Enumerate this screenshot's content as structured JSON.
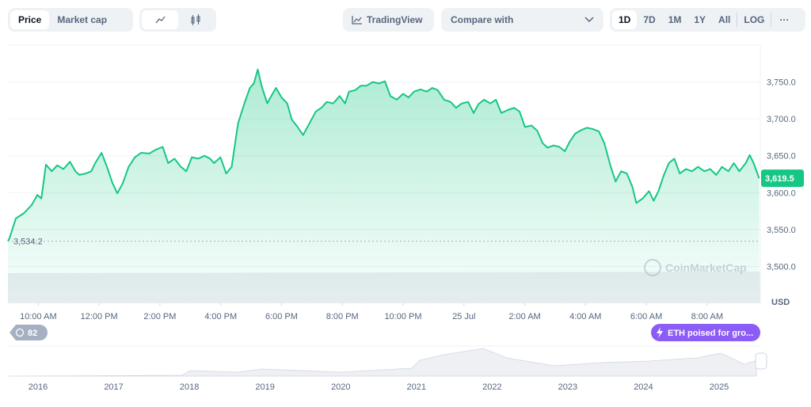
{
  "toolbar": {
    "tabs": [
      "Price",
      "Market cap"
    ],
    "tradingview": "TradingView",
    "compare": "Compare with",
    "ranges": [
      "1D",
      "7D",
      "1M",
      "1Y",
      "All",
      "LOG"
    ],
    "more": "···"
  },
  "chart_data": {
    "type": "line",
    "color": "#16c784",
    "grid": true,
    "unit": "USD",
    "watermark": "CoinMarketCap",
    "x": [
      9.0,
      9.05,
      9.26,
      9.52,
      9.78,
      9.97,
      10.1,
      10.25,
      10.44,
      10.62,
      10.83,
      11.04,
      11.22,
      11.35,
      11.56,
      11.74,
      11.87,
      12.08,
      12.26,
      12.44,
      12.6,
      12.78,
      12.97,
      13.18,
      13.38,
      13.65,
      13.85,
      14.09,
      14.27,
      14.48,
      14.69,
      14.87,
      15.05,
      15.26,
      15.47,
      15.65,
      15.78,
      15.99,
      16.18,
      16.36,
      16.57,
      16.78,
      16.96,
      17.09,
      17.22,
      17.35,
      17.53,
      17.69,
      17.82,
      18.0,
      18.19,
      18.34,
      18.53,
      18.71,
      18.92,
      19.13,
      19.31,
      19.49,
      19.7,
      19.91,
      20.09,
      20.22,
      20.43,
      20.61,
      20.8,
      21.0,
      21.21,
      21.4,
      21.58,
      21.79,
      22.0,
      22.18,
      22.36,
      22.57,
      22.78,
      22.96,
      23.14,
      23.35,
      23.56,
      23.74,
      23.93,
      24.14,
      24.32,
      24.48,
      24.66,
      24.87,
      25.05,
      25.23,
      25.44,
      25.65,
      25.83,
      26.01,
      26.22,
      26.41,
      26.59,
      26.75,
      26.95,
      27.14,
      27.32,
      27.48,
      27.66,
      27.87,
      28.05,
      28.26,
      28.44,
      28.62,
      28.83,
      28.99,
      29.17,
      29.36,
      29.54,
      29.67,
      29.88,
      30.09,
      30.24,
      30.4,
      30.58,
      30.74,
      30.92,
      31.1,
      31.31,
      31.5,
      31.7,
      31.91,
      32.1,
      32.3,
      32.49,
      32.7,
      32.88,
      33.06,
      33.27,
      33.4,
      33.53,
      33.71
    ],
    "values": [
      3534.2,
      3538,
      3565,
      3572,
      3583,
      3597,
      3592,
      3638,
      3629,
      3637,
      3632,
      3642,
      3629,
      3624,
      3626,
      3629,
      3640,
      3654,
      3635,
      3613,
      3599,
      3613,
      3635,
      3648,
      3654,
      3653,
      3658,
      3662,
      3640,
      3646,
      3635,
      3629,
      3648,
      3646,
      3650,
      3646,
      3640,
      3648,
      3626,
      3635,
      3694,
      3721,
      3742,
      3748,
      3767,
      3744,
      3721,
      3733,
      3742,
      3729,
      3721,
      3699,
      3689,
      3678,
      3694,
      3710,
      3715,
      3723,
      3721,
      3731,
      3721,
      3737,
      3739,
      3745,
      3745,
      3750,
      3748,
      3751,
      3731,
      3726,
      3734,
      3729,
      3737,
      3740,
      3737,
      3742,
      3739,
      3726,
      3723,
      3715,
      3721,
      3723,
      3708,
      3720,
      3726,
      3721,
      3726,
      3708,
      3712,
      3715,
      3710,
      3689,
      3691,
      3684,
      3667,
      3661,
      3664,
      3662,
      3656,
      3669,
      3680,
      3685,
      3688,
      3686,
      3683,
      3667,
      3635,
      3615,
      3629,
      3626,
      3608,
      3586,
      3592,
      3602,
      3589,
      3602,
      3624,
      3640,
      3646,
      3626,
      3632,
      3629,
      3635,
      3629,
      3632,
      3624,
      3635,
      3629,
      3640,
      3629,
      3640,
      3651,
      3640,
      3619.5
    ],
    "xlim": [
      9,
      33.75
    ],
    "xticks": [
      {
        "value": 10,
        "label": "10:00 AM"
      },
      {
        "value": 12,
        "label": "12:00 PM"
      },
      {
        "value": 14,
        "label": "2:00 PM"
      },
      {
        "value": 16,
        "label": "4:00 PM"
      },
      {
        "value": 18,
        "label": "6:00 PM"
      },
      {
        "value": 20,
        "label": "8:00 PM"
      },
      {
        "value": 22,
        "label": "10:00 PM"
      },
      {
        "value": 24,
        "label": "25 Jul"
      },
      {
        "value": 26,
        "label": "2:00 AM"
      },
      {
        "value": 28,
        "label": "4:00 AM"
      },
      {
        "value": 30,
        "label": "6:00 AM"
      },
      {
        "value": 32,
        "label": "8:00 AM"
      }
    ],
    "ylim": [
      3450,
      3800
    ],
    "yticks": [
      {
        "value": 3500,
        "label": "3,500.0"
      },
      {
        "value": 3550,
        "label": "3,550.0"
      },
      {
        "value": 3600,
        "label": "3,600.0"
      },
      {
        "value": 3650,
        "label": "3,650.0"
      },
      {
        "value": 3700,
        "label": "3,700.0"
      },
      {
        "value": 3750,
        "label": "3,750.0"
      }
    ],
    "open_price": {
      "value": 3534.2,
      "label": "3,534.2"
    },
    "current_price": {
      "value": 3619.5,
      "label": "3,619.5"
    }
  },
  "badge": "82",
  "news": "ETH poised for gro...",
  "navigator": {
    "years": [
      "2016",
      "2017",
      "2018",
      "2019",
      "2020",
      "2021",
      "2022",
      "2023",
      "2024",
      "2025"
    ]
  }
}
